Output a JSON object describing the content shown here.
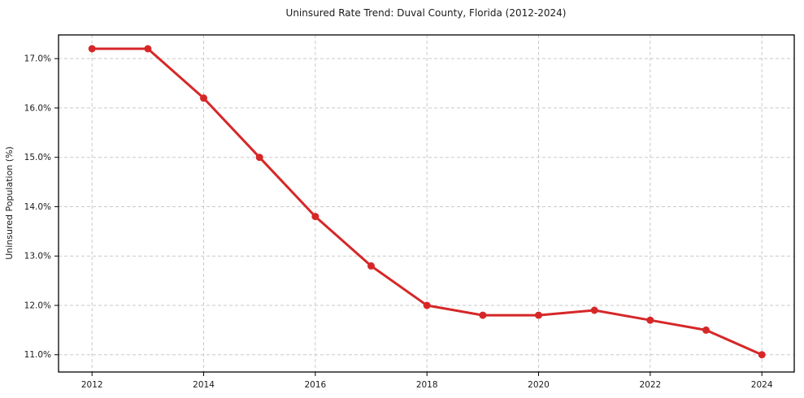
{
  "chart_data": {
    "type": "line",
    "title": "Uninsured Rate Trend: Duval County, Florida (2012-2024)",
    "xlabel": "",
    "ylabel": "Uninsured Population (%)",
    "x": [
      2012,
      2013,
      2014,
      2015,
      2016,
      2017,
      2018,
      2019,
      2020,
      2021,
      2022,
      2023,
      2024
    ],
    "series": [
      {
        "name": "Uninsured rate",
        "values": [
          17.2,
          17.2,
          16.2,
          15.0,
          13.8,
          12.8,
          12.0,
          11.8,
          11.8,
          11.9,
          11.7,
          11.5,
          11.0
        ]
      }
    ],
    "x_ticks": [
      2012,
      2014,
      2016,
      2018,
      2020,
      2022,
      2024
    ],
    "x_tick_labels": [
      "2012",
      "2014",
      "2016",
      "2018",
      "2020",
      "2022",
      "2024"
    ],
    "y_ticks": [
      11.0,
      12.0,
      13.0,
      14.0,
      15.0,
      16.0,
      17.0
    ],
    "y_tick_labels": [
      "11.0%",
      "12.0%",
      "13.0%",
      "14.0%",
      "15.0%",
      "16.0%",
      "17.0%"
    ],
    "xlim": [
      2011.4,
      2024.58
    ],
    "ylim": [
      10.65,
      17.48
    ],
    "grid": true,
    "legend": "none",
    "line_color": "#d62728",
    "marker_color": "#d62728",
    "background_color": "#ffffff"
  }
}
